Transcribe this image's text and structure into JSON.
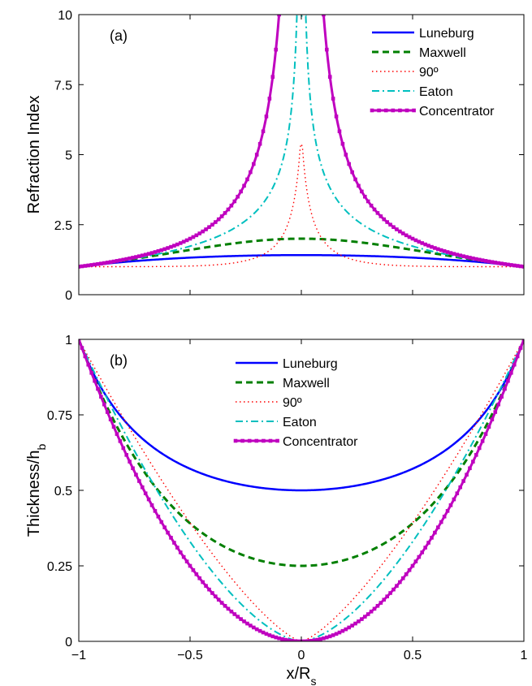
{
  "chart_data": [
    {
      "type": "line",
      "panel_label": "(a)",
      "xlabel": "",
      "ylabel": "Refraction Index",
      "xlim": [
        -1,
        1
      ],
      "ylim": [
        0,
        10
      ],
      "xticks": [
        -1,
        -0.5,
        0,
        0.5,
        1
      ],
      "xtick_labels": [
        "",
        "",
        "",
        "",
        ""
      ],
      "yticks": [
        0,
        2.5,
        5,
        7.5,
        10
      ],
      "ytick_labels": [
        "0",
        "2.5",
        "5",
        "7.5",
        "10"
      ],
      "legend_position": "top-right",
      "grid": false,
      "series": [
        {
          "name": "Luneburg",
          "color": "#0000ff",
          "style": "solid",
          "formula": "sqrt(2 - x^2)",
          "x": [
            -1,
            -0.5,
            0,
            0.5,
            1
          ],
          "values": [
            1.0,
            1.323,
            1.414,
            1.323,
            1.0
          ]
        },
        {
          "name": "Maxwell",
          "color": "#007f00",
          "style": "dashed",
          "formula": "2 / (1 + x^2)",
          "x": [
            -1,
            -0.5,
            0,
            0.5,
            1
          ],
          "values": [
            1.0,
            1.6,
            2.0,
            1.6,
            1.0
          ]
        },
        {
          "name": "90º",
          "color": "#ff0000",
          "style": "dotted",
          "formula": "rotating lens profile",
          "x": [
            -1,
            -0.5,
            -0.1,
            0,
            0.1,
            0.5,
            1
          ],
          "values": [
            1.0,
            1.45,
            3.2,
            5.9,
            3.2,
            1.45,
            1.0
          ]
        },
        {
          "name": "Eaton",
          "color": "#00bfbf",
          "style": "dashdot",
          "formula": "sqrt(2/|x| - 1)",
          "x": [
            -1,
            -0.5,
            -0.1,
            0,
            0.1,
            0.5,
            1
          ],
          "values": [
            1.0,
            1.73,
            4.36,
            10,
            4.36,
            1.73,
            1.0
          ]
        },
        {
          "name": "Concentrator",
          "color": "#bf00bf",
          "style": "solid-square-markers",
          "formula": "1 / |x|",
          "x": [
            -1,
            -0.5,
            -0.2,
            -0.1,
            0.1,
            0.2,
            0.5,
            1
          ],
          "values": [
            1.0,
            2.0,
            5.0,
            10.0,
            10.0,
            5.0,
            2.0,
            1.0
          ]
        }
      ]
    },
    {
      "type": "line",
      "panel_label": "(b)",
      "xlabel": "x/R",
      "xlabel_subscript": "s",
      "ylabel": "Thickness/h",
      "ylabel_subscript": "b",
      "xlim": [
        -1,
        1
      ],
      "ylim": [
        0,
        1
      ],
      "xticks": [
        -1,
        -0.5,
        0,
        0.5,
        1
      ],
      "xtick_labels": [
        "−1",
        "−0.5",
        "0",
        "0.5",
        "1"
      ],
      "yticks": [
        0,
        0.25,
        0.5,
        0.75,
        1
      ],
      "ytick_labels": [
        "0",
        "0.25",
        "0.5",
        "0.75",
        "1"
      ],
      "legend_position": "top-center",
      "grid": false,
      "series": [
        {
          "name": "Luneburg",
          "color": "#0000ff",
          "style": "solid",
          "x": [
            -1,
            -0.5,
            0,
            0.5,
            1
          ],
          "values": [
            1.0,
            0.566,
            0.5,
            0.566,
            1.0
          ]
        },
        {
          "name": "Maxwell",
          "color": "#007f00",
          "style": "dashed",
          "x": [
            -1,
            -0.5,
            0,
            0.5,
            1
          ],
          "values": [
            1.0,
            0.391,
            0.25,
            0.391,
            1.0
          ]
        },
        {
          "name": "90º",
          "color": "#ff0000",
          "style": "dotted",
          "x": [
            -1,
            -0.5,
            0,
            0.5,
            1
          ],
          "values": [
            1.0,
            0.38,
            0.0,
            0.38,
            1.0
          ]
        },
        {
          "name": "Eaton",
          "color": "#00bfbf",
          "style": "dashdot",
          "x": [
            -1,
            -0.5,
            0,
            0.5,
            1
          ],
          "values": [
            1.0,
            0.333,
            0.0,
            0.333,
            1.0
          ]
        },
        {
          "name": "Concentrator",
          "color": "#bf00bf",
          "style": "solid-square-markers",
          "x": [
            -1,
            -0.5,
            0,
            0.5,
            1
          ],
          "values": [
            1.0,
            0.25,
            0.0,
            0.25,
            1.0
          ]
        }
      ]
    }
  ]
}
